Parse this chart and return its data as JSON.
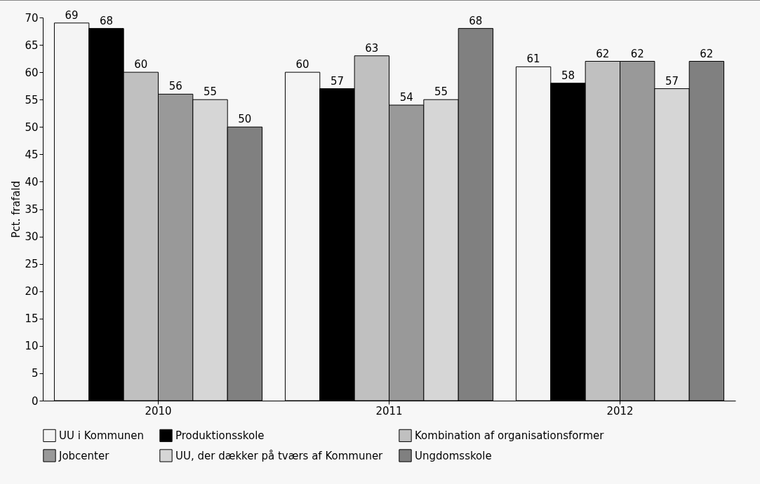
{
  "chart_data": {
    "type": "bar",
    "ylabel": "Pct. frafald",
    "categories": [
      "2010",
      "2011",
      "2012"
    ],
    "series": [
      {
        "name": "UU i Kommunen",
        "color": "#f4f4f4",
        "values": [
          69,
          60,
          61
        ]
      },
      {
        "name": "Produktionsskole",
        "color": "#000000",
        "values": [
          68,
          57,
          58
        ]
      },
      {
        "name": "Kombination af organisationsformer",
        "color": "#c0c0c0",
        "values": [
          60,
          63,
          62
        ]
      },
      {
        "name": "Jobcenter",
        "color": "#999999",
        "values": [
          56,
          54,
          62
        ]
      },
      {
        "name": "UU, der dækker på tværs af Kommuner",
        "color": "#d6d6d6",
        "values": [
          55,
          55,
          57
        ]
      },
      {
        "name": "Ungdomsskole",
        "color": "#808080",
        "values": [
          50,
          68,
          62
        ]
      }
    ],
    "ylim": [
      0,
      70
    ],
    "yticks": [
      0,
      5,
      10,
      15,
      20,
      25,
      30,
      35,
      40,
      45,
      50,
      55,
      60,
      65,
      70
    ],
    "data_labels": true,
    "legend": "bottom",
    "grid": false
  }
}
